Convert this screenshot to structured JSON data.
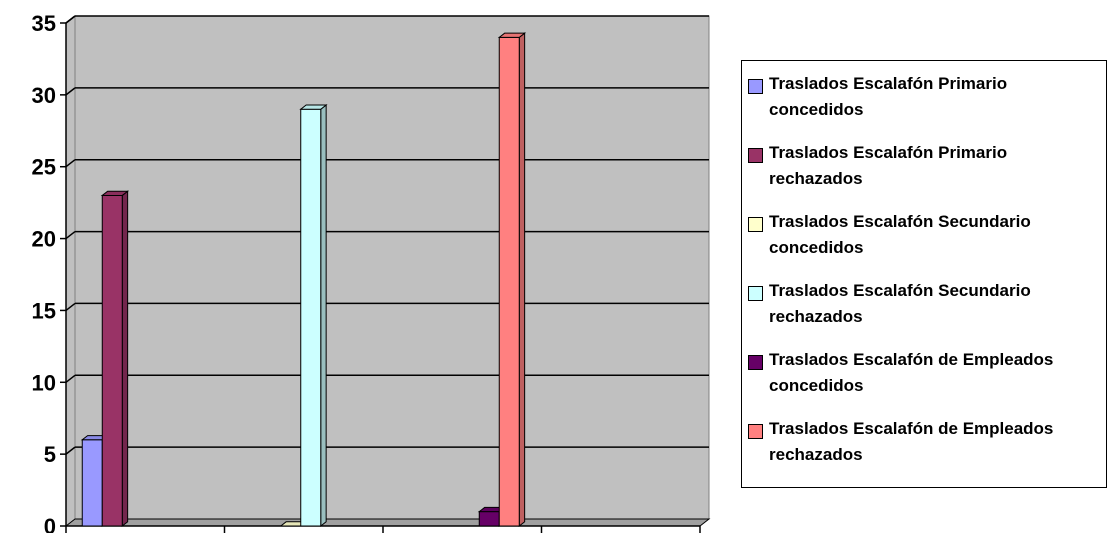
{
  "chart_data": {
    "type": "bar",
    "categories": [
      "",
      "",
      "",
      ""
    ],
    "ylim": [
      0,
      35
    ],
    "yticks": [
      0,
      5,
      10,
      15,
      20,
      25,
      30,
      35
    ],
    "grid": true,
    "legend_position": "right",
    "title": "",
    "xlabel": "",
    "ylabel": "",
    "series": [
      {
        "name": "Traslados Escalafón Primario concedidos",
        "color": "#9999ff",
        "values": [
          6,
          0,
          0,
          0
        ]
      },
      {
        "name": "Traslados Escalafón Primario rechazados",
        "color": "#993366",
        "values": [
          23,
          0,
          0,
          0
        ]
      },
      {
        "name": "Traslados Escalafón Secundario concedidos",
        "color": "#ffffcc",
        "values": [
          0,
          0,
          0,
          0
        ]
      },
      {
        "name": "Traslados Escalafón Secundario rechazados",
        "color": "#ccffff",
        "values": [
          0,
          29,
          0,
          0
        ]
      },
      {
        "name": "Traslados Escalafón de Empleados concedidos",
        "color": "#660066",
        "values": [
          0,
          0,
          1,
          0
        ]
      },
      {
        "name": "Traslados Escalafón de Empleados rechazados",
        "color": "#ff8080",
        "values": [
          0,
          0,
          34,
          0
        ]
      }
    ],
    "plot_background": "#c0c0c0"
  }
}
